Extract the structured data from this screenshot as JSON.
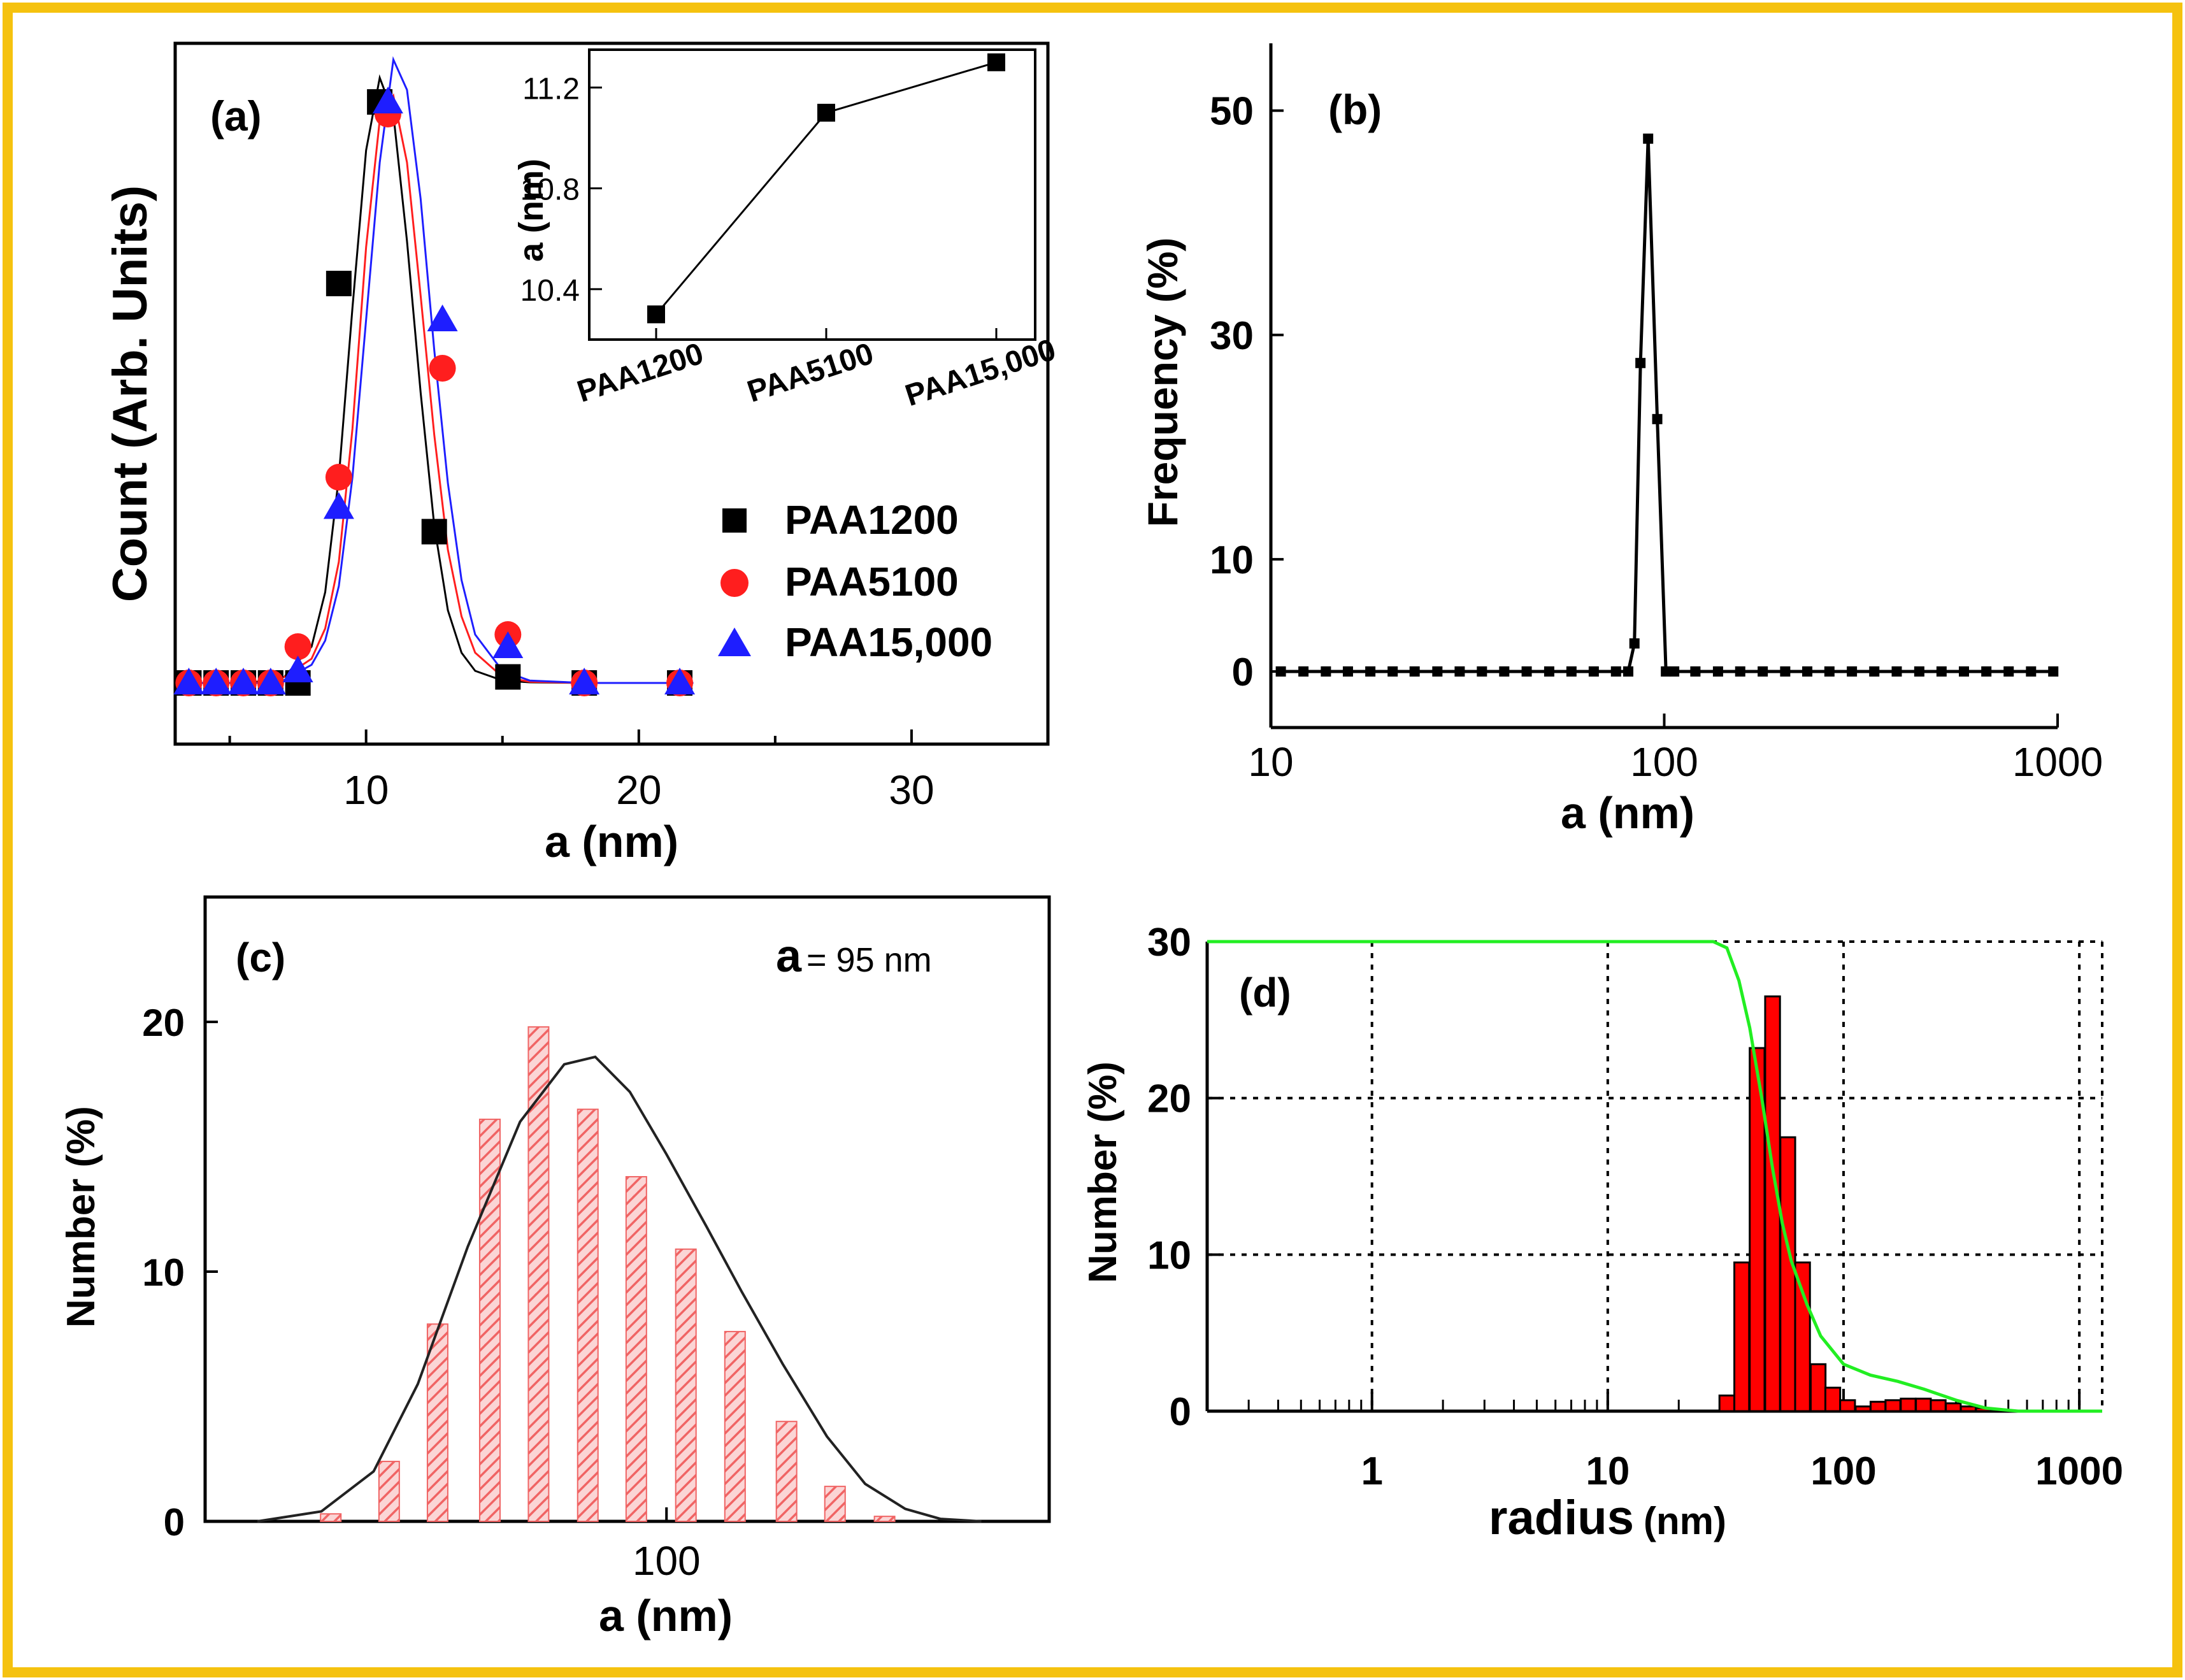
{
  "figure": {
    "border_color": "#F5C20F"
  },
  "chart_data": [
    {
      "panel": "(a)",
      "type": "scatter",
      "xlabel": "a (nm)",
      "ylabel": "Count (Arb. Units)",
      "xlim": [
        3,
        35
      ],
      "ylim": [
        0,
        1.0
      ],
      "xticks": [
        10,
        20,
        30
      ],
      "series": [
        {
          "name": "PAA1200",
          "color": "#000000",
          "marker": "square",
          "x": [
            3.5,
            4.5,
            5.5,
            6.5,
            7.5,
            9.0,
            10.5,
            12.5,
            15.2,
            18.0,
            21.5
          ],
          "y": [
            0.0,
            0.0,
            0.0,
            0.0,
            0.0,
            0.66,
            0.96,
            0.25,
            0.01,
            0.0,
            0.0
          ],
          "fit_x": [
            3.5,
            5,
            6,
            7,
            8,
            8.5,
            9,
            9.5,
            10,
            10.5,
            11,
            11.5,
            12,
            12.5,
            13,
            13.5,
            14,
            15,
            16,
            18,
            22
          ],
          "fit_y": [
            0.0,
            0.0,
            0.002,
            0.01,
            0.06,
            0.15,
            0.34,
            0.62,
            0.88,
            1.0,
            0.94,
            0.73,
            0.48,
            0.26,
            0.12,
            0.05,
            0.02,
            0.004,
            0.001,
            0.0,
            0.0
          ]
        },
        {
          "name": "PAA5100",
          "color": "#FF1E1E",
          "marker": "circle",
          "x": [
            3.5,
            4.5,
            5.5,
            6.5,
            7.5,
            9.0,
            10.8,
            12.8,
            15.2,
            18.0,
            21.5
          ],
          "y": [
            0.0,
            0.0,
            0.0,
            0.0,
            0.06,
            0.34,
            0.94,
            0.52,
            0.08,
            0.0,
            0.0
          ],
          "fit_x": [
            3.5,
            5,
            6,
            7,
            8,
            8.5,
            9,
            9.5,
            10,
            10.5,
            11,
            11.5,
            12,
            12.5,
            13,
            13.5,
            14,
            15,
            16,
            18,
            22
          ],
          "fit_y": [
            0.0,
            0.0,
            0.0,
            0.01,
            0.04,
            0.09,
            0.2,
            0.42,
            0.72,
            0.93,
            0.97,
            0.86,
            0.64,
            0.41,
            0.22,
            0.11,
            0.05,
            0.01,
            0.002,
            0.0,
            0.0
          ]
        },
        {
          "name": "PAA15,000",
          "color": "#1E1EFF",
          "marker": "triangle",
          "x": [
            3.5,
            4.5,
            5.5,
            6.5,
            7.5,
            9.0,
            10.8,
            12.8,
            15.2,
            18.0,
            21.5
          ],
          "y": [
            0.0,
            0.0,
            0.0,
            0.0,
            0.02,
            0.29,
            0.96,
            0.6,
            0.06,
            0.0,
            0.0
          ],
          "fit_x": [
            3.5,
            5,
            6,
            7,
            8,
            8.5,
            9,
            9.5,
            10,
            10.5,
            11,
            11.5,
            12,
            12.5,
            13,
            13.5,
            14,
            15,
            16,
            18,
            22
          ],
          "fit_y": [
            0.0,
            0.0,
            0.0,
            0.005,
            0.03,
            0.07,
            0.16,
            0.34,
            0.6,
            0.86,
            1.03,
            0.98,
            0.8,
            0.55,
            0.33,
            0.17,
            0.08,
            0.02,
            0.004,
            0.0,
            0.0
          ]
        }
      ],
      "inset": {
        "type": "line",
        "ylabel": "a (nm)",
        "categories": [
          "PAA1200",
          "PAA5100",
          "PAA15,000"
        ],
        "values": [
          10.3,
          11.1,
          11.3
        ],
        "ylim": [
          10.2,
          11.35
        ],
        "yticks": [
          "10.4",
          "10.8",
          "11.2"
        ]
      }
    },
    {
      "panel": "(b)",
      "type": "line",
      "xscale": "log",
      "xlabel": "a (nm)",
      "ylabel": "Frequency (%)",
      "xlim": [
        10,
        1000
      ],
      "xticks": [
        "10",
        "100",
        "1000"
      ],
      "ylim": [
        -5,
        56
      ],
      "yticks": [
        "0",
        "10",
        "30",
        "50"
      ],
      "x": [
        10.6,
        12.1,
        13.8,
        15.7,
        17.9,
        20.4,
        23.2,
        26.5,
        30.2,
        34.4,
        39.2,
        44.7,
        51.0,
        58.1,
        66.2,
        75.4,
        81.0,
        84.0,
        87.0,
        91.0,
        96.0,
        101.0,
        106.0,
        120.0,
        137.0,
        156.0,
        178.0,
        203.0,
        231.0,
        263.0,
        300.0,
        342.0,
        390.0,
        445.0,
        507.0,
        578.0,
        659.0,
        751.0,
        856.0,
        975.0
      ],
      "y": [
        0,
        0,
        0,
        0,
        0,
        0,
        0,
        0,
        0,
        0,
        0,
        0,
        0,
        0,
        0,
        0,
        0,
        2.5,
        27.5,
        47.5,
        22.5,
        0,
        0,
        0,
        0,
        0,
        0,
        0,
        0,
        0,
        0,
        0,
        0,
        0,
        0,
        0,
        0,
        0,
        0,
        0
      ]
    },
    {
      "panel": "(c)",
      "type": "bar",
      "xscale": "log",
      "xlabel": "a (nm)",
      "ylabel": "Number (%)",
      "annotation_symbol": "a",
      "annotation_text": "= 95 nm",
      "xlim": [
        20,
        380
      ],
      "xticks": [
        "100"
      ],
      "ylim": [
        0,
        25
      ],
      "yticks": [
        "0",
        "10",
        "20"
      ],
      "x": [
        31,
        38,
        45,
        54,
        64,
        76,
        90,
        107,
        127,
        152,
        180,
        214,
        255
      ],
      "values": [
        0.3,
        2.4,
        7.9,
        16.1,
        19.8,
        16.5,
        13.8,
        10.9,
        7.6,
        4.0,
        1.4,
        0.2,
        0.0
      ],
      "fit_x": [
        24,
        30,
        36,
        42,
        50,
        60,
        70,
        78,
        88,
        100,
        115,
        130,
        150,
        175,
        200,
        230,
        260,
        300
      ],
      "fit_y": [
        0.0,
        0.4,
        2.0,
        5.5,
        11.0,
        16.0,
        18.3,
        18.6,
        17.2,
        14.7,
        11.8,
        9.2,
        6.3,
        3.4,
        1.5,
        0.5,
        0.1,
        0.0
      ],
      "bar_color": "#F06464"
    },
    {
      "panel": "(d)",
      "type": "bar",
      "xscale": "log",
      "xlabel": "radius",
      "xlabel_unit": "(nm)",
      "ylabel": "Number (%)",
      "xlim": [
        0.2,
        1250
      ],
      "xticks": [
        "1",
        "10",
        "100",
        "1000"
      ],
      "ylim": [
        0,
        30
      ],
      "yticks": [
        "0",
        "10",
        "20",
        "30"
      ],
      "x": [
        32,
        37,
        43,
        50,
        58,
        67,
        78,
        90,
        104,
        121,
        140,
        162,
        188,
        218,
        252,
        292,
        338,
        392,
        454
      ],
      "values": [
        1.0,
        9.5,
        23.2,
        26.5,
        17.5,
        9.5,
        3.0,
        1.5,
        0.7,
        0.3,
        0.6,
        0.7,
        0.8,
        0.8,
        0.7,
        0.5,
        0.3,
        0.2,
        0.1
      ],
      "bar_color": "#FF0000",
      "cumulative_color": "#22EE22",
      "cumulative_x": [
        0.2,
        1,
        10,
        28,
        32,
        36,
        40,
        45,
        50,
        55,
        60,
        70,
        80,
        100,
        130,
        170,
        220,
        300,
        400,
        550,
        1250
      ],
      "cumulative_y": [
        30,
        30,
        30,
        30,
        29.6,
        27.5,
        24.5,
        20.0,
        15.5,
        12.0,
        9.6,
        6.8,
        4.8,
        3.0,
        2.3,
        1.9,
        1.4,
        0.7,
        0.2,
        0.0,
        0.0
      ]
    }
  ]
}
